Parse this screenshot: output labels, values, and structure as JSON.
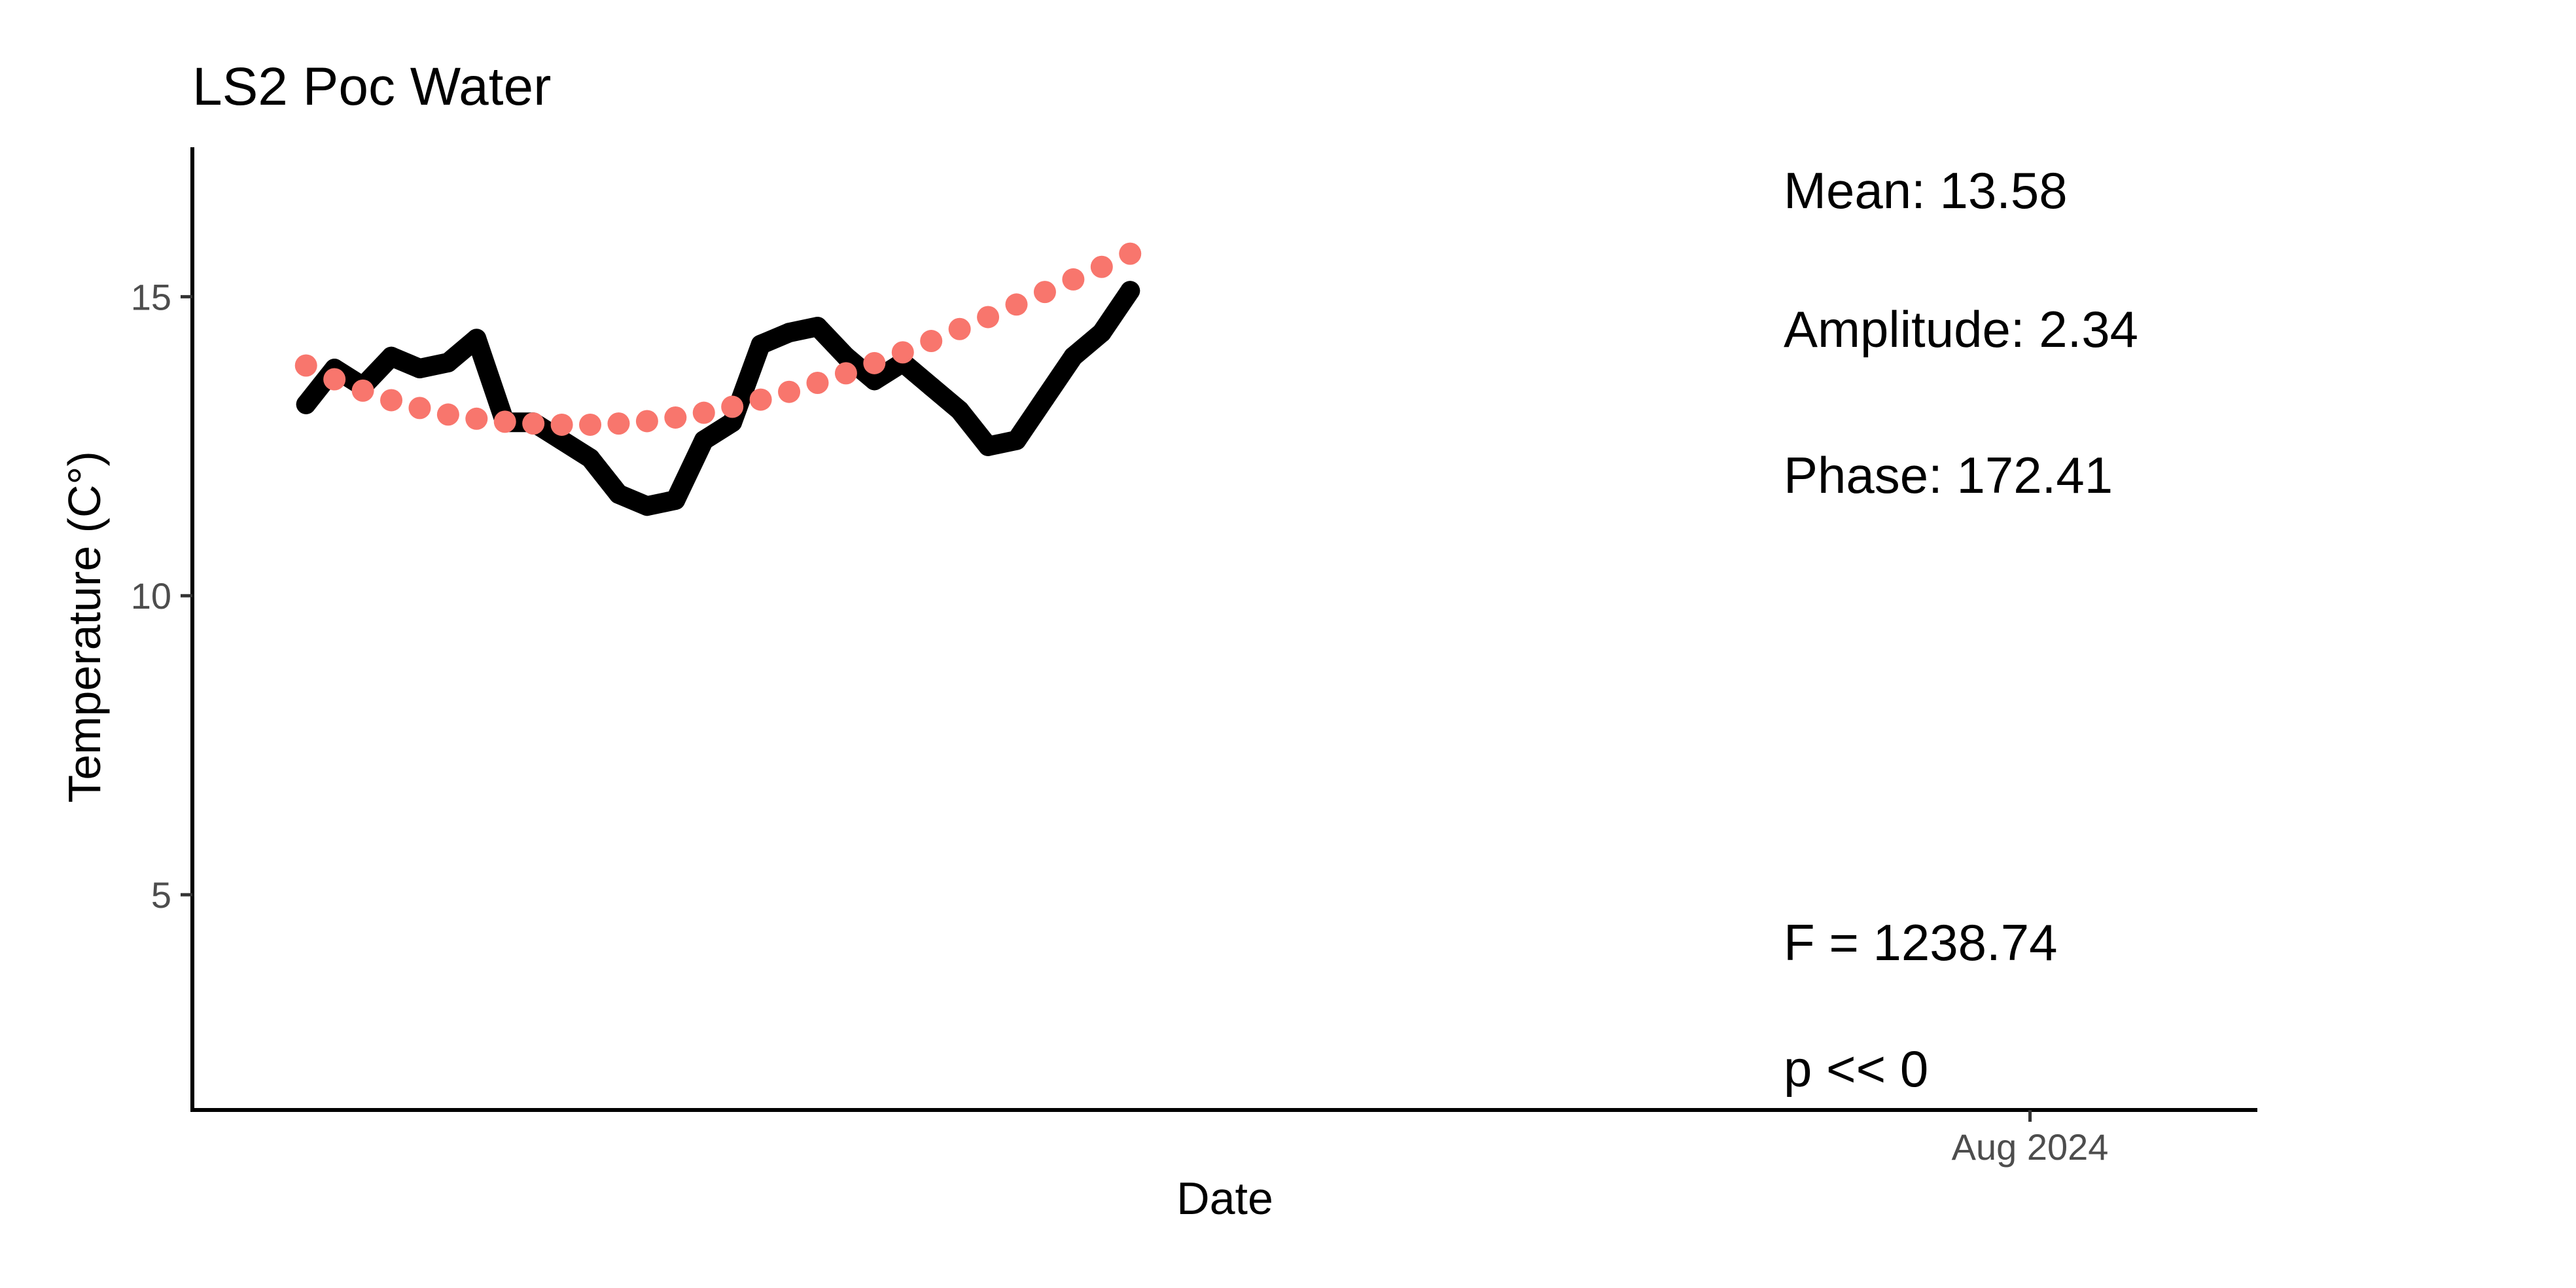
{
  "chart_data": {
    "type": "scatter",
    "title": "LS2 Poc Water",
    "xlabel": "Date",
    "ylabel": "Temperature (C°)",
    "y_ticks": [
      "5",
      "10",
      "15"
    ],
    "x_ticks": [
      "Aug 2024"
    ],
    "grid": false,
    "series": [
      {
        "role": "observed",
        "color": "#000000",
        "x": [
          "2024-02-01",
          "2024-02-04",
          "2024-02-07",
          "2024-02-10",
          "2024-02-13",
          "2024-02-16",
          "2024-02-19",
          "2024-02-22",
          "2024-02-25",
          "2024-02-28",
          "2024-03-02",
          "2024-03-05",
          "2024-03-08",
          "2024-03-11",
          "2024-03-14",
          "2024-03-17",
          "2024-03-20",
          "2024-03-23",
          "2024-03-26",
          "2024-03-29",
          "2024-04-01",
          "2024-04-04",
          "2024-04-07",
          "2024-04-10",
          "2024-04-13",
          "2024-04-16",
          "2024-04-19",
          "2024-04-22",
          "2024-04-25",
          "2024-04-28"
        ],
        "y": [
          13.2,
          13.8,
          13.5,
          14.0,
          13.8,
          13.9,
          14.3,
          12.9,
          12.9,
          12.6,
          12.3,
          11.7,
          11.5,
          11.6,
          12.6,
          12.9,
          14.2,
          14.4,
          14.5,
          14.0,
          13.6,
          13.9,
          13.5,
          13.1,
          12.5,
          12.6,
          13.3,
          14.0,
          14.4,
          15.1
        ]
      },
      {
        "role": "fitted",
        "color": "#F8766D",
        "x": [
          "2024-02-01",
          "2024-02-04",
          "2024-02-07",
          "2024-02-10",
          "2024-02-13",
          "2024-02-16",
          "2024-02-19",
          "2024-02-22",
          "2024-02-25",
          "2024-02-28",
          "2024-03-02",
          "2024-03-05",
          "2024-03-08",
          "2024-03-11",
          "2024-03-14",
          "2024-03-17",
          "2024-03-20",
          "2024-03-23",
          "2024-03-26",
          "2024-03-29",
          "2024-04-01",
          "2024-04-04",
          "2024-04-07",
          "2024-04-10",
          "2024-04-13",
          "2024-04-16",
          "2024-04-19",
          "2024-04-22",
          "2024-04-25",
          "2024-04-28"
        ],
        "y": [
          13.85,
          13.62,
          13.43,
          13.27,
          13.14,
          13.03,
          12.96,
          12.91,
          12.88,
          12.86,
          12.86,
          12.88,
          12.92,
          12.98,
          13.06,
          13.16,
          13.28,
          13.41,
          13.56,
          13.72,
          13.89,
          14.07,
          14.26,
          14.46,
          14.66,
          14.87,
          15.08,
          15.29,
          15.5,
          15.72
        ]
      }
    ],
    "annotations": {
      "mean": "Mean: 13.58",
      "amplitude": "Amplitude: 2.34",
      "phase": "Phase: 172.41",
      "f_stat": "F =  1238.74",
      "p_value": "p <<  0"
    }
  }
}
